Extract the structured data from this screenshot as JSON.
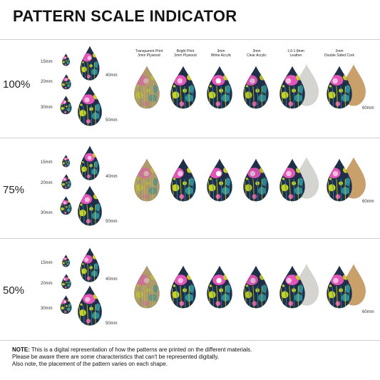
{
  "title": "PATTERN SCALE INDICATOR",
  "sizes": {
    "s15": "15mm",
    "s20": "20mm",
    "s30": "30mm",
    "s40": "40mm",
    "s50": "50mm",
    "s60": "60mm"
  },
  "materials": [
    {
      "line1": "Transparent Print",
      "line2": "3mm Plywood"
    },
    {
      "line1": "Bright Print",
      "line2": "3mm Plywood"
    },
    {
      "line1": "3mm",
      "line2": "White Acrylic"
    },
    {
      "line1": "3mm",
      "line2": "Clear Acrylic"
    },
    {
      "line1": "1.6-1.8mm",
      "line2": "Leather"
    },
    {
      "line1": "2mm",
      "line2": "Double Sided Cork"
    }
  ],
  "rows": [
    {
      "scale": "100%"
    },
    {
      "scale": "75%"
    },
    {
      "scale": "50%"
    }
  ],
  "note": {
    "label": "NOTE:",
    "text1": " This is a digital representation of how the patterns are printed on the different materials.",
    "text2": "Please be aware there are some characteristics that can't be represented digitally.",
    "text3": "Also note, the placement of the pattern varies on each shape."
  },
  "colors": {
    "navy": "#1f2f4a",
    "teal": "#2e8d9a",
    "pink": "#e455b8",
    "lime": "#c8d21c",
    "leather": "#d4d4d0",
    "cork": "#c9a06a"
  }
}
